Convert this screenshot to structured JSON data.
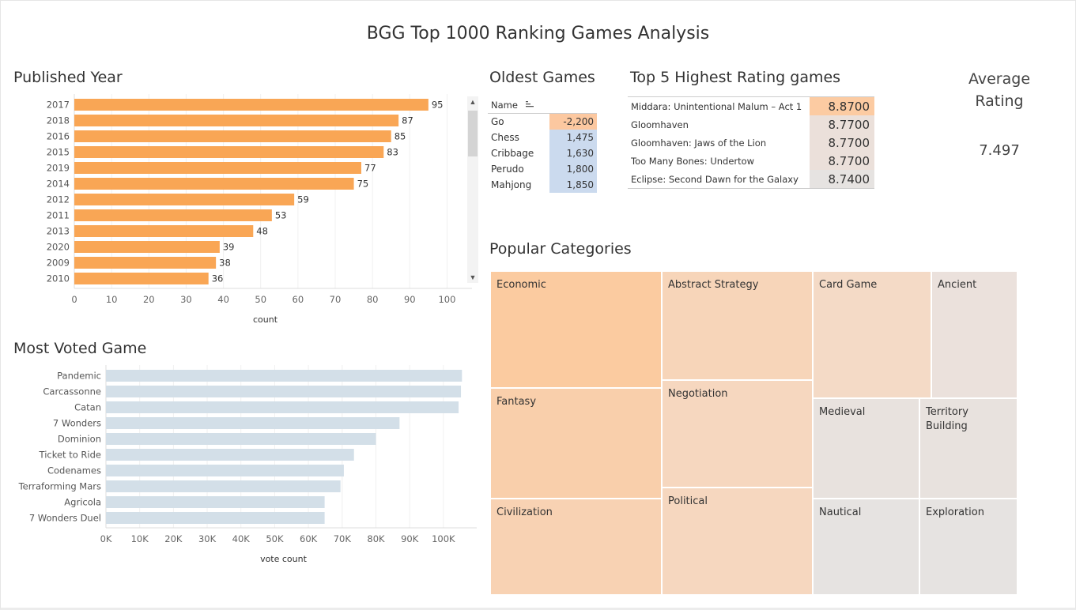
{
  "title": "BGG Top 1000 Ranking Games Analysis",
  "published_year": {
    "title": "Published Year",
    "xlabel": "count",
    "ticks": [
      "0",
      "10",
      "20",
      "30",
      "40",
      "50",
      "60",
      "70",
      "80",
      "90",
      "100"
    ],
    "bar_color": "#f9a655"
  },
  "most_voted": {
    "title": "Most Voted Game",
    "xlabel": "vote count",
    "ticks": [
      "0K",
      "10K",
      "20K",
      "30K",
      "40K",
      "50K",
      "60K",
      "70K",
      "80K",
      "90K",
      "100K"
    ],
    "bar_color": "#d3dfe8"
  },
  "chart_data": [
    {
      "type": "bar",
      "orientation": "horizontal",
      "title": "Published Year",
      "xlabel": "count",
      "ylabel": "",
      "categories": [
        "2017",
        "2018",
        "2016",
        "2015",
        "2019",
        "2014",
        "2012",
        "2011",
        "2013",
        "2020",
        "2009",
        "2010"
      ],
      "values": [
        95,
        87,
        85,
        83,
        77,
        75,
        59,
        53,
        48,
        39,
        38,
        36
      ],
      "xlim": [
        0,
        105
      ],
      "data_labels": true,
      "grid": true
    },
    {
      "type": "bar",
      "orientation": "horizontal",
      "title": "Most Voted Game",
      "xlabel": "vote count",
      "ylabel": "",
      "categories": [
        "Pandemic",
        "Carcassonne",
        "Catan",
        "7 Wonders",
        "Dominion",
        "Ticket to Ride",
        "Codenames",
        "Terraforming Mars",
        "Agricola",
        "7 Wonders Duel"
      ],
      "values": [
        105500,
        105200,
        104500,
        87000,
        80000,
        73500,
        70500,
        69500,
        64800,
        64800
      ],
      "xlim": [
        0,
        108000
      ],
      "data_labels": false,
      "grid": true
    }
  ],
  "oldest_games": {
    "title": "Oldest Games",
    "header": "Name",
    "rows": [
      {
        "name": "Go",
        "year": "-2,200",
        "color": "#fcc8a0"
      },
      {
        "name": "Chess",
        "year": "1,475",
        "color": "#cbdaee"
      },
      {
        "name": "Cribbage",
        "year": "1,630",
        "color": "#cbdaee"
      },
      {
        "name": "Perudo",
        "year": "1,800",
        "color": "#cbdaee"
      },
      {
        "name": "Mahjong",
        "year": "1,850",
        "color": "#cbdaee"
      }
    ]
  },
  "top5": {
    "title": "Top 5 Highest Rating games",
    "rows": [
      {
        "name": "Middara: Unintentional Malum – Act 1",
        "rating": "8.8700",
        "color": "#fccba2"
      },
      {
        "name": "Gloomhaven",
        "rating": "8.7700",
        "color": "#ebe0da"
      },
      {
        "name": "Gloomhaven: Jaws of the Lion",
        "rating": "8.7700",
        "color": "#ebe0da"
      },
      {
        "name": "Too Many Bones: Undertow",
        "rating": "8.7700",
        "color": "#ebe0da"
      },
      {
        "name": "Eclipse: Second Dawn for the Galaxy",
        "rating": "8.7400",
        "color": "#e6e3e1"
      }
    ]
  },
  "average_rating": {
    "label_line1": "Average",
    "label_line2": "Rating",
    "value": "7.497"
  },
  "categories": {
    "title": "Popular Categories",
    "tiles": [
      {
        "name": "Economic",
        "color": "#fbcba0"
      },
      {
        "name": "Abstract Strategy",
        "color": "#f7d5b9"
      },
      {
        "name": "Card Game",
        "color": "#f4dac6"
      },
      {
        "name": "Ancient",
        "color": "#ebe1dc"
      },
      {
        "name": "Fantasy",
        "color": "#f9cfab"
      },
      {
        "name": "Negotiation",
        "color": "#f6d7bf"
      },
      {
        "name": "Medieval",
        "color": "#e8e2de"
      },
      {
        "name": "Territory Building",
        "color": "#e8e2de"
      },
      {
        "name": "Civilization",
        "color": "#f8d2b3"
      },
      {
        "name": "Political",
        "color": "#f6d7bf"
      },
      {
        "name": "Nautical",
        "color": "#e6e3e1"
      },
      {
        "name": "Exploration",
        "color": "#e6e3e1"
      }
    ]
  }
}
